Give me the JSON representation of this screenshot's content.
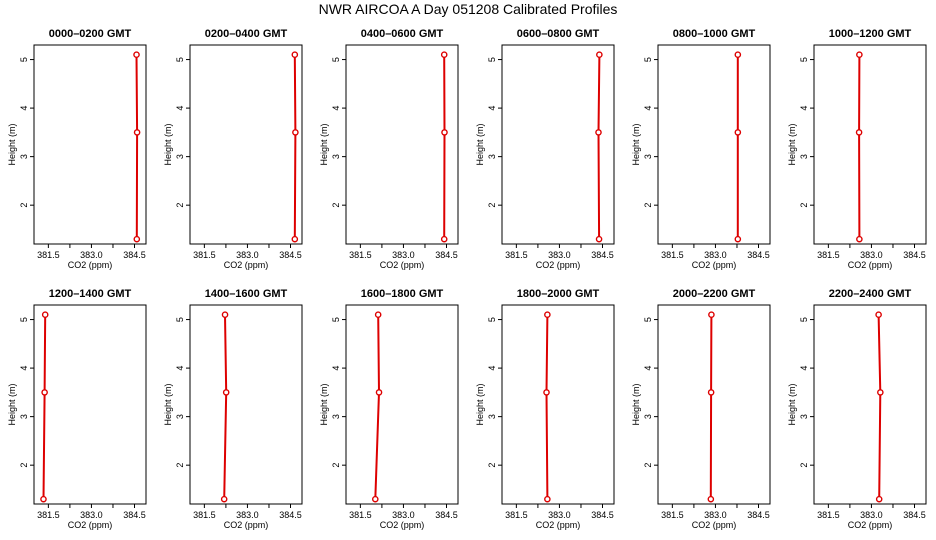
{
  "title": "NWR AIRCOA A  Day 051208  Calibrated Profiles",
  "colors": {
    "series": "#dd0000",
    "axis": "#000000"
  },
  "chart_data": [
    {
      "type": "line",
      "title": "0000–0200 GMT",
      "xlabel": "CO2 (ppm)",
      "ylabel": "Height (m)",
      "xlim": [
        381.0,
        384.9
      ],
      "ylim": [
        1.2,
        5.3
      ],
      "xticks": [
        "381.5",
        "383.0",
        "384.5"
      ],
      "yticks": [
        "2",
        "3",
        "4",
        "5"
      ],
      "grid": false,
      "series": [
        {
          "x": [
            384.58,
            384.59,
            384.57
          ],
          "y": [
            1.3,
            3.5,
            5.1
          ]
        }
      ]
    },
    {
      "type": "line",
      "title": "0200–0400 GMT",
      "xlabel": "CO2 (ppm)",
      "ylabel": "Height (m)",
      "xlim": [
        381.0,
        384.9
      ],
      "ylim": [
        1.2,
        5.3
      ],
      "xticks": [
        "381.5",
        "383.0",
        "384.5"
      ],
      "yticks": [
        "2",
        "3",
        "4",
        "5"
      ],
      "grid": false,
      "series": [
        {
          "x": [
            384.65,
            384.67,
            384.65
          ],
          "y": [
            1.3,
            3.5,
            5.1
          ]
        }
      ]
    },
    {
      "type": "line",
      "title": "0400–0600 GMT",
      "xlabel": "CO2 (ppm)",
      "ylabel": "Height (m)",
      "xlim": [
        381.0,
        384.9
      ],
      "ylim": [
        1.2,
        5.3
      ],
      "xticks": [
        "381.5",
        "383.0",
        "384.5"
      ],
      "yticks": [
        "2",
        "3",
        "4",
        "5"
      ],
      "grid": false,
      "series": [
        {
          "x": [
            384.42,
            384.43,
            384.42
          ],
          "y": [
            1.3,
            3.5,
            5.1
          ]
        }
      ]
    },
    {
      "type": "line",
      "title": "0600–0800 GMT",
      "xlabel": "CO2 (ppm)",
      "ylabel": "Height (m)",
      "xlim": [
        381.0,
        384.9
      ],
      "ylim": [
        1.2,
        5.3
      ],
      "xticks": [
        "381.5",
        "383.0",
        "384.5"
      ],
      "yticks": [
        "2",
        "3",
        "4",
        "5"
      ],
      "grid": false,
      "series": [
        {
          "x": [
            384.38,
            384.36,
            384.39
          ],
          "y": [
            1.3,
            3.5,
            5.1
          ]
        }
      ]
    },
    {
      "type": "line",
      "title": "0800–1000 GMT",
      "xlabel": "CO2 (ppm)",
      "ylabel": "Height (m)",
      "xlim": [
        381.0,
        384.9
      ],
      "ylim": [
        1.2,
        5.3
      ],
      "xticks": [
        "381.5",
        "383.0",
        "384.5"
      ],
      "yticks": [
        "2",
        "3",
        "4",
        "5"
      ],
      "grid": false,
      "series": [
        {
          "x": [
            383.78,
            383.78,
            383.78
          ],
          "y": [
            1.3,
            3.5,
            5.1
          ]
        }
      ]
    },
    {
      "type": "line",
      "title": "1000–1200 GMT",
      "xlabel": "CO2 (ppm)",
      "ylabel": "Height (m)",
      "xlim": [
        381.0,
        384.9
      ],
      "ylim": [
        1.2,
        5.3
      ],
      "xticks": [
        "381.5",
        "383.0",
        "384.5"
      ],
      "yticks": [
        "2",
        "3",
        "4",
        "5"
      ],
      "grid": false,
      "series": [
        {
          "x": [
            382.58,
            382.57,
            382.58
          ],
          "y": [
            1.3,
            3.5,
            5.1
          ]
        }
      ]
    },
    {
      "type": "line",
      "title": "1200–1400 GMT",
      "xlabel": "CO2 (ppm)",
      "ylabel": "Height (m)",
      "xlim": [
        381.0,
        384.9
      ],
      "ylim": [
        1.2,
        5.3
      ],
      "xticks": [
        "381.5",
        "383.0",
        "384.5"
      ],
      "yticks": [
        "2",
        "3",
        "4",
        "5"
      ],
      "grid": false,
      "series": [
        {
          "x": [
            381.33,
            381.37,
            381.39
          ],
          "y": [
            1.3,
            3.5,
            5.1
          ]
        }
      ]
    },
    {
      "type": "line",
      "title": "1400–1600 GMT",
      "xlabel": "CO2 (ppm)",
      "ylabel": "Height (m)",
      "xlim": [
        381.0,
        384.9
      ],
      "ylim": [
        1.2,
        5.3
      ],
      "xticks": [
        "381.5",
        "383.0",
        "384.5"
      ],
      "yticks": [
        "2",
        "3",
        "4",
        "5"
      ],
      "grid": false,
      "series": [
        {
          "x": [
            382.19,
            382.26,
            382.22
          ],
          "y": [
            1.3,
            3.5,
            5.1
          ]
        }
      ]
    },
    {
      "type": "line",
      "title": "1600–1800 GMT",
      "xlabel": "CO2 (ppm)",
      "ylabel": "Height (m)",
      "xlim": [
        381.0,
        384.9
      ],
      "ylim": [
        1.2,
        5.3
      ],
      "xticks": [
        "381.5",
        "383.0",
        "384.5"
      ],
      "yticks": [
        "2",
        "3",
        "4",
        "5"
      ],
      "grid": false,
      "series": [
        {
          "x": [
            382.02,
            382.15,
            382.12
          ],
          "y": [
            1.3,
            3.5,
            5.1
          ]
        }
      ]
    },
    {
      "type": "line",
      "title": "1800–2000 GMT",
      "xlabel": "CO2 (ppm)",
      "ylabel": "Height (m)",
      "xlim": [
        381.0,
        384.9
      ],
      "ylim": [
        1.2,
        5.3
      ],
      "xticks": [
        "381.5",
        "383.0",
        "384.5"
      ],
      "yticks": [
        "2",
        "3",
        "4",
        "5"
      ],
      "grid": false,
      "series": [
        {
          "x": [
            382.58,
            382.55,
            382.58
          ],
          "y": [
            1.3,
            3.5,
            5.1
          ]
        }
      ]
    },
    {
      "type": "line",
      "title": "2000–2200 GMT",
      "xlabel": "CO2 (ppm)",
      "ylabel": "Height (m)",
      "xlim": [
        381.0,
        384.9
      ],
      "ylim": [
        1.2,
        5.3
      ],
      "xticks": [
        "381.5",
        "383.0",
        "384.5"
      ],
      "yticks": [
        "2",
        "3",
        "4",
        "5"
      ],
      "grid": false,
      "series": [
        {
          "x": [
            382.84,
            382.85,
            382.86
          ],
          "y": [
            1.3,
            3.5,
            5.1
          ]
        }
      ]
    },
    {
      "type": "line",
      "title": "2200–2400 GMT",
      "xlabel": "CO2 (ppm)",
      "ylabel": "Height (m)",
      "xlim": [
        381.0,
        384.9
      ],
      "ylim": [
        1.2,
        5.3
      ],
      "xticks": [
        "381.5",
        "383.0",
        "384.5"
      ],
      "yticks": [
        "2",
        "3",
        "4",
        "5"
      ],
      "grid": false,
      "series": [
        {
          "x": [
            383.27,
            383.31,
            383.25
          ],
          "y": [
            1.3,
            3.5,
            5.1
          ]
        }
      ]
    }
  ]
}
